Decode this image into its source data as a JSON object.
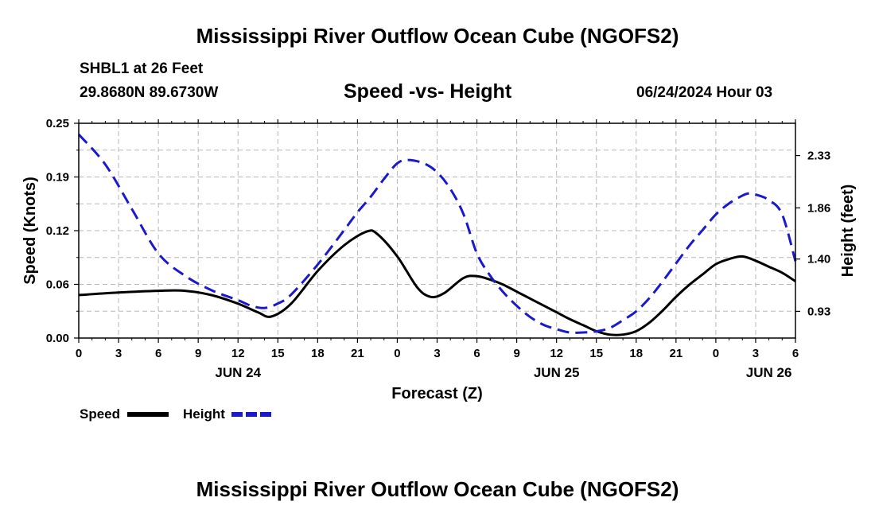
{
  "title": "Mississippi River Outflow Ocean Cube (NGOFS2)",
  "bottom_title": "Mississippi River Outflow Ocean Cube (NGOFS2)",
  "station": "SHBL1 at 26 Feet",
  "coordinates": "29.8680N  89.6730W",
  "subtitle": "Speed -vs- Height",
  "date": "06/24/2024 Hour 03",
  "chart_data": {
    "type": "line",
    "title": "Speed -vs- Height",
    "xlabel": "Forecast (Z)",
    "ylabel": "Speed (Knots)",
    "ylabel_right": "Height (feet)",
    "x_range_hours": [
      0,
      54
    ],
    "ylim": [
      0,
      0.25
    ],
    "ylim_right": [
      0.69,
      2.62
    ],
    "y_ticks": [
      "0.00",
      "0.06",
      "0.12",
      "0.19",
      "0.25"
    ],
    "y_tick_values": [
      0,
      0.0625,
      0.125,
      0.1875,
      0.25
    ],
    "y_right_ticks": [
      "0.93",
      "1.40",
      "1.86",
      "2.33"
    ],
    "y_right_tick_values": [
      0.93,
      1.4,
      1.86,
      2.33
    ],
    "x_ticks": [
      "0",
      "3",
      "6",
      "9",
      "12",
      "15",
      "18",
      "21",
      "0",
      "3",
      "6",
      "9",
      "12",
      "15",
      "18",
      "21",
      "0",
      "3",
      "6"
    ],
    "date_labels": [
      {
        "label": "JUN 24",
        "hour": 12
      },
      {
        "label": "JUN 25",
        "hour": 36
      },
      {
        "label": "JUN 26",
        "hour": 52
      }
    ],
    "grid": true,
    "legend": {
      "position": "bottom-left",
      "entries": [
        "Speed",
        "Height"
      ]
    },
    "series": [
      {
        "name": "Speed",
        "axis": "left",
        "color": "#000000",
        "style": "solid",
        "x": [
          0,
          3,
          6,
          8,
          10,
          12,
          13.5,
          14.5,
          16,
          18,
          20,
          21.7,
          22.5,
          24,
          25.5,
          26.5,
          27.5,
          29,
          30,
          31,
          32,
          33,
          34,
          35,
          36,
          37,
          38,
          39,
          40,
          41,
          42,
          43,
          44,
          45,
          46,
          47,
          48,
          49,
          50,
          51,
          52,
          53,
          54
        ],
        "y": [
          0.05,
          0.053,
          0.055,
          0.055,
          0.05,
          0.04,
          0.03,
          0.025,
          0.04,
          0.078,
          0.108,
          0.124,
          0.121,
          0.095,
          0.059,
          0.048,
          0.052,
          0.07,
          0.072,
          0.068,
          0.062,
          0.054,
          0.046,
          0.038,
          0.03,
          0.022,
          0.015,
          0.008,
          0.004,
          0.004,
          0.008,
          0.018,
          0.032,
          0.048,
          0.062,
          0.074,
          0.086,
          0.092,
          0.095,
          0.09,
          0.083,
          0.076,
          0.066
        ]
      },
      {
        "name": "Height",
        "axis": "right",
        "color": "#1a1acc",
        "style": "dashed",
        "x": [
          0,
          2,
          4,
          6,
          8,
          10,
          12,
          13,
          14,
          15,
          16,
          18,
          20,
          21,
          22,
          23,
          24,
          24.8,
          26,
          27,
          28,
          29,
          30,
          31,
          32,
          33,
          34,
          35,
          36,
          37,
          38,
          39,
          40,
          41,
          42,
          43,
          44,
          45,
          46,
          47,
          48,
          49,
          50,
          50.5,
          51,
          52,
          53,
          54
        ],
        "y": [
          2.52,
          2.25,
          1.85,
          1.45,
          1.25,
          1.12,
          1.03,
          0.98,
          0.96,
          1.0,
          1.08,
          1.35,
          1.66,
          1.82,
          1.96,
          2.12,
          2.26,
          2.29,
          2.26,
          2.18,
          2.03,
          1.8,
          1.45,
          1.25,
          1.1,
          0.98,
          0.88,
          0.81,
          0.77,
          0.74,
          0.74,
          0.75,
          0.78,
          0.85,
          0.93,
          1.05,
          1.2,
          1.36,
          1.52,
          1.66,
          1.8,
          1.9,
          1.97,
          1.99,
          1.98,
          1.93,
          1.8,
          1.38
        ]
      }
    ]
  }
}
